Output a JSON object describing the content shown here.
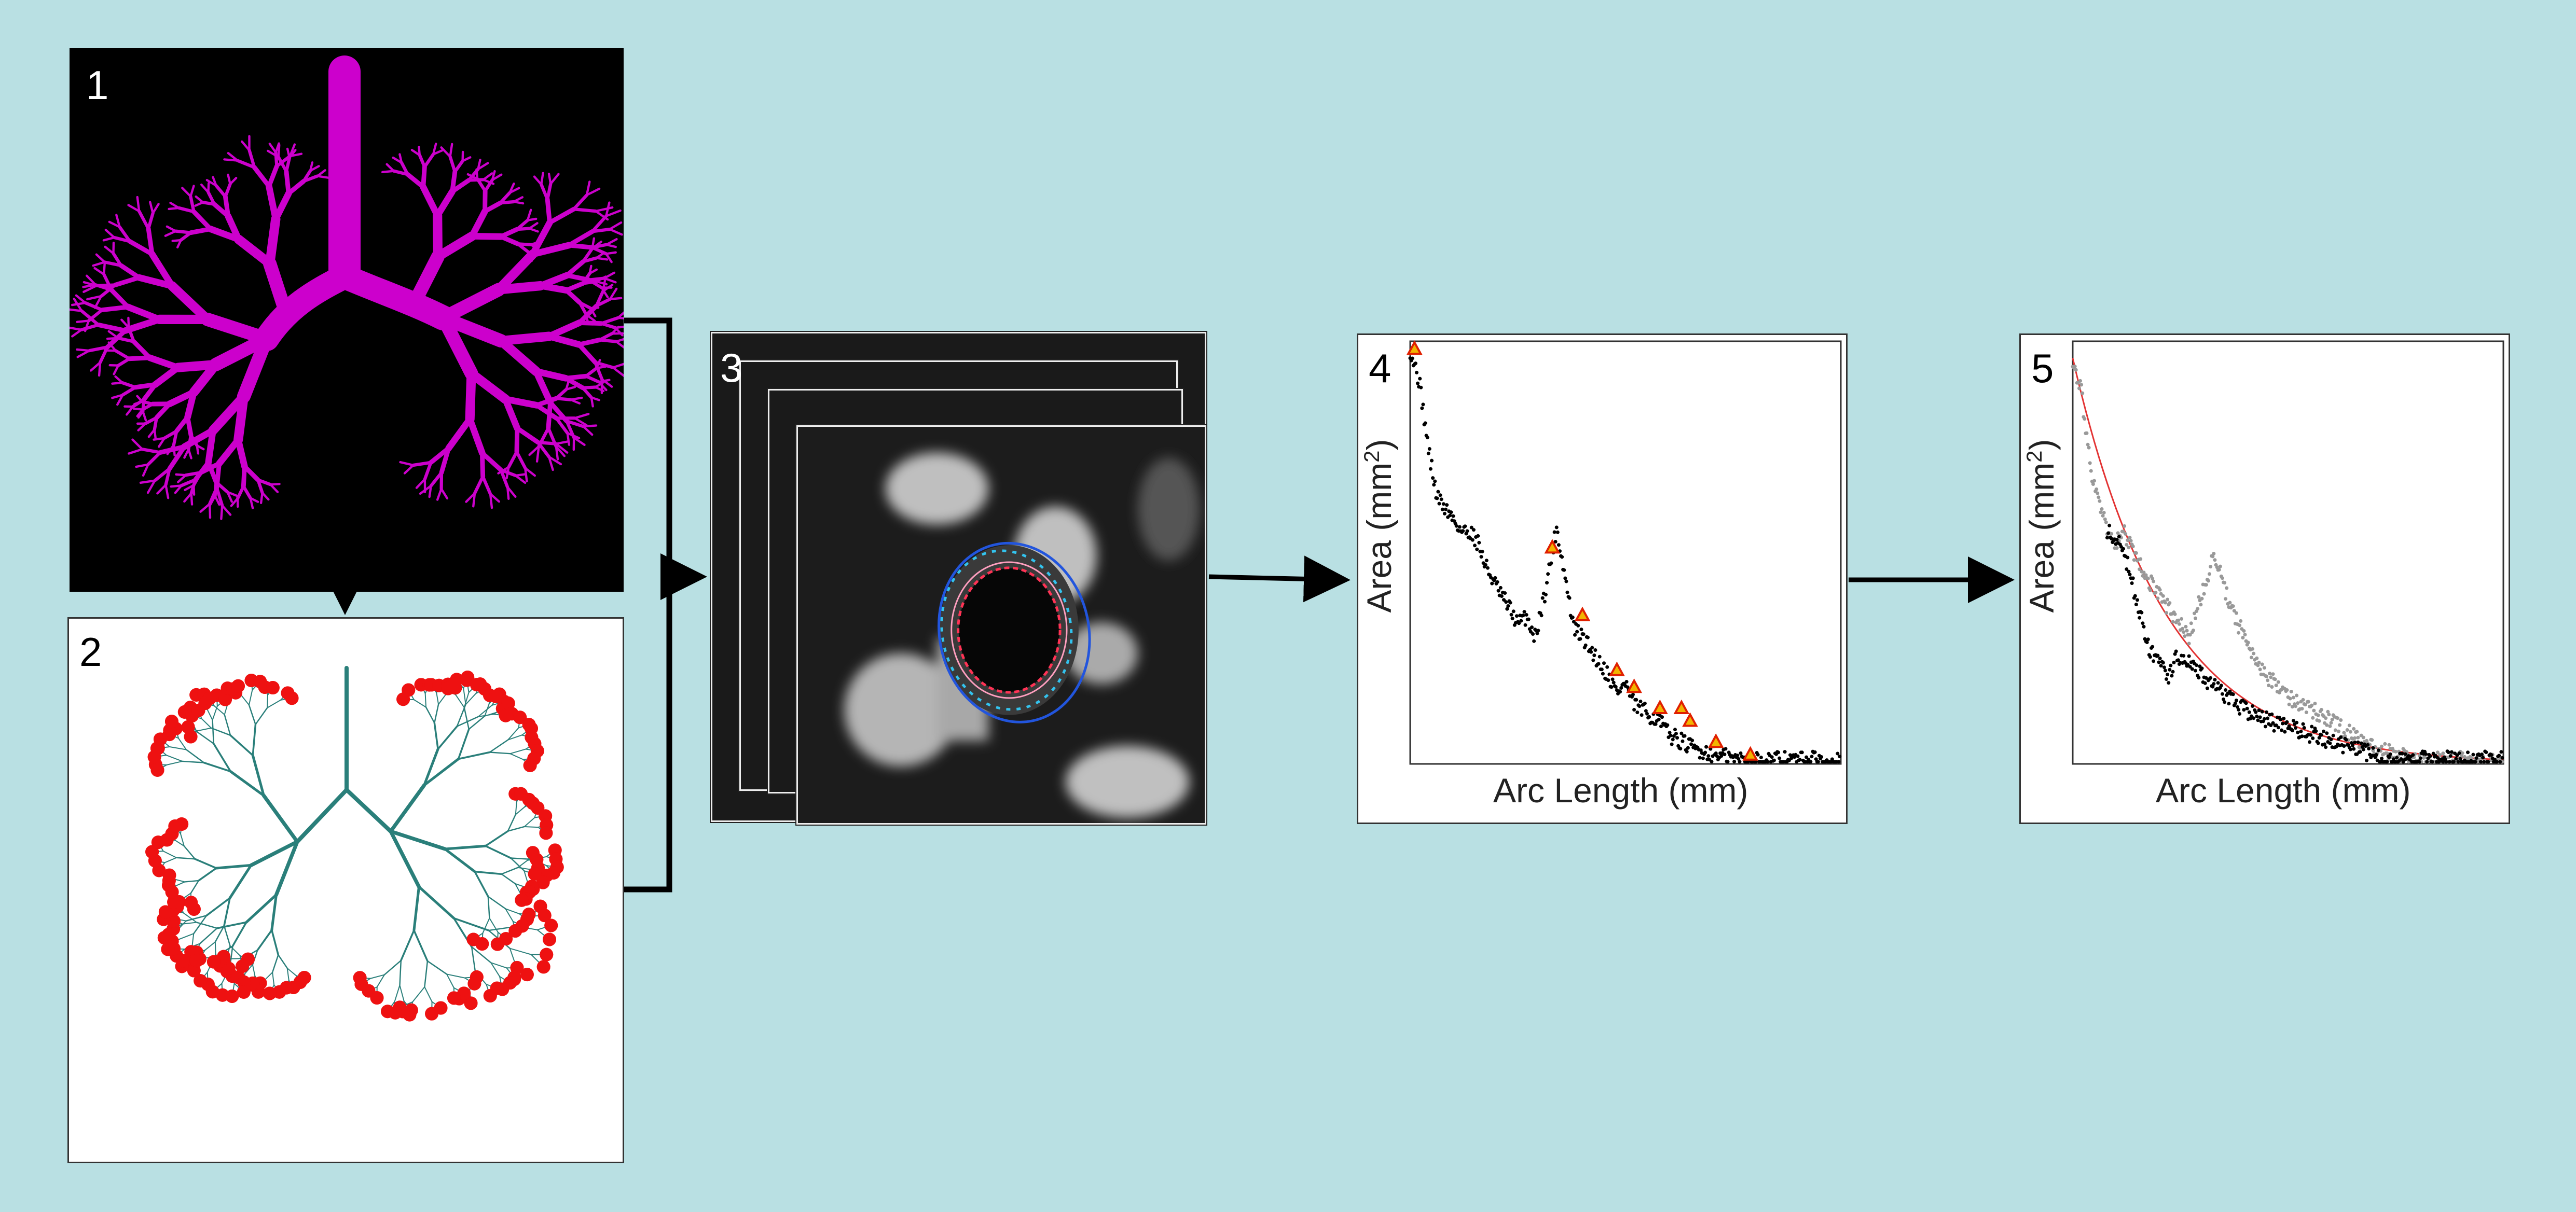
{
  "panels": [
    {
      "id": "p1",
      "number": "1"
    },
    {
      "id": "p2",
      "number": "2"
    },
    {
      "id": "p3",
      "number": "3"
    },
    {
      "id": "p4",
      "number": "4"
    },
    {
      "id": "p5",
      "number": "5"
    }
  ],
  "colors": {
    "background": "#b9e0e3",
    "airway_tree": "#cc00cc",
    "centerline": "#2a7f7a",
    "endpoint": "#ee1111",
    "inner_contour": "#ff3355",
    "outer_contour": "#2255dd",
    "fit_curve": "#e33333",
    "peak_marker_fill": "#f2b400",
    "peak_marker_edge": "#e02000"
  },
  "chart_data": [
    {
      "type": "scatter",
      "panel": "4",
      "xlabel": "Arc Length (mm)",
      "ylabel": "Area (mm",
      "ylabel_sup": "2",
      "ylabel_end": ")",
      "series": [
        {
          "color": "#000000",
          "values": [
            [
              0,
              98
            ],
            [
              2,
              91
            ],
            [
              3,
              84
            ],
            [
              4,
              76
            ],
            [
              5,
              70
            ],
            [
              6,
              64
            ],
            [
              7,
              62
            ],
            [
              10,
              58
            ],
            [
              12,
              55
            ],
            [
              14,
              55
            ],
            [
              16,
              52
            ],
            [
              17,
              48
            ],
            [
              19,
              44
            ],
            [
              21,
              40
            ],
            [
              23,
              37
            ],
            [
              25,
              33
            ],
            [
              27,
              35
            ],
            [
              29,
              30
            ],
            [
              31,
              39
            ],
            [
              33,
              50
            ],
            [
              34,
              56
            ],
            [
              36,
              44
            ],
            [
              38,
              32
            ],
            [
              40,
              30
            ],
            [
              42,
              27
            ],
            [
              44,
              24
            ],
            [
              46,
              21
            ],
            [
              48,
              17
            ],
            [
              50,
              19
            ],
            [
              52,
              14
            ],
            [
              55,
              12
            ],
            [
              58,
              10
            ],
            [
              60,
              7
            ],
            [
              62,
              6
            ],
            [
              65,
              4
            ],
            [
              68,
              3
            ],
            [
              72,
              2
            ],
            [
              76,
              1
            ],
            [
              80,
              1
            ],
            [
              85,
              1
            ],
            [
              90,
              1
            ],
            [
              95,
              1
            ],
            [
              100,
              1
            ]
          ]
        }
      ],
      "peaks": [
        [
          1,
          98
        ],
        [
          33,
          51
        ],
        [
          40,
          35
        ],
        [
          48,
          22
        ],
        [
          52,
          18
        ],
        [
          58,
          13
        ],
        [
          63,
          13
        ],
        [
          65,
          10
        ],
        [
          71,
          5
        ],
        [
          79,
          2
        ]
      ]
    },
    {
      "type": "scatter",
      "panel": "5",
      "xlabel": "Arc Length (mm)",
      "ylabel": "Area (mm",
      "ylabel_sup": "2",
      "ylabel_end": ")",
      "series": [
        {
          "color": "#999999",
          "values": [
            [
              0,
              96
            ],
            [
              2,
              88
            ],
            [
              3,
              80
            ],
            [
              4,
              71
            ],
            [
              6,
              62
            ],
            [
              8,
              55
            ],
            [
              10,
              52
            ],
            [
              12,
              55
            ],
            [
              14,
              50
            ],
            [
              16,
              46
            ],
            [
              20,
              40
            ],
            [
              24,
              34
            ],
            [
              27,
              30
            ],
            [
              30,
              40
            ],
            [
              33,
              50
            ],
            [
              35,
              42
            ],
            [
              37,
              36
            ],
            [
              40,
              30
            ],
            [
              42,
              26
            ],
            [
              44,
              22
            ],
            [
              46,
              20
            ],
            [
              49,
              17
            ],
            [
              53,
              14
            ],
            [
              57,
              12
            ],
            [
              60,
              10
            ],
            [
              63,
              8
            ],
            [
              66,
              6
            ],
            [
              70,
              4
            ],
            [
              75,
              2
            ],
            [
              80,
              1
            ],
            [
              85,
              1
            ],
            [
              90,
              1
            ],
            [
              95,
              1
            ],
            [
              100,
              1
            ]
          ]
        },
        {
          "color": "#000000",
          "values": [
            [
              8,
              55
            ],
            [
              10,
              53
            ],
            [
              11,
              52
            ],
            [
              12,
              50
            ],
            [
              13,
              46
            ],
            [
              14,
              42
            ],
            [
              15,
              38
            ],
            [
              16,
              35
            ],
            [
              17,
              30
            ],
            [
              18,
              27
            ],
            [
              19,
              25
            ],
            [
              20,
              24
            ],
            [
              21,
              22
            ],
            [
              22,
              20
            ],
            [
              23,
              22
            ],
            [
              24,
              26
            ],
            [
              25,
              24
            ],
            [
              26,
              25
            ],
            [
              29,
              22
            ],
            [
              31,
              20
            ],
            [
              34,
              17
            ],
            [
              37,
              15
            ],
            [
              38,
              14
            ],
            [
              43,
              11
            ],
            [
              70,
              2
            ],
            [
              72,
              1
            ],
            [
              74,
              1
            ],
            [
              76,
              1
            ],
            [
              78,
              1
            ],
            [
              80,
              1
            ],
            [
              85,
              1
            ],
            [
              90,
              1
            ],
            [
              95,
              1
            ],
            [
              100,
              1
            ]
          ]
        }
      ],
      "fit_curve": {
        "type": "exponential",
        "a": 96,
        "b": 0.046
      }
    }
  ]
}
